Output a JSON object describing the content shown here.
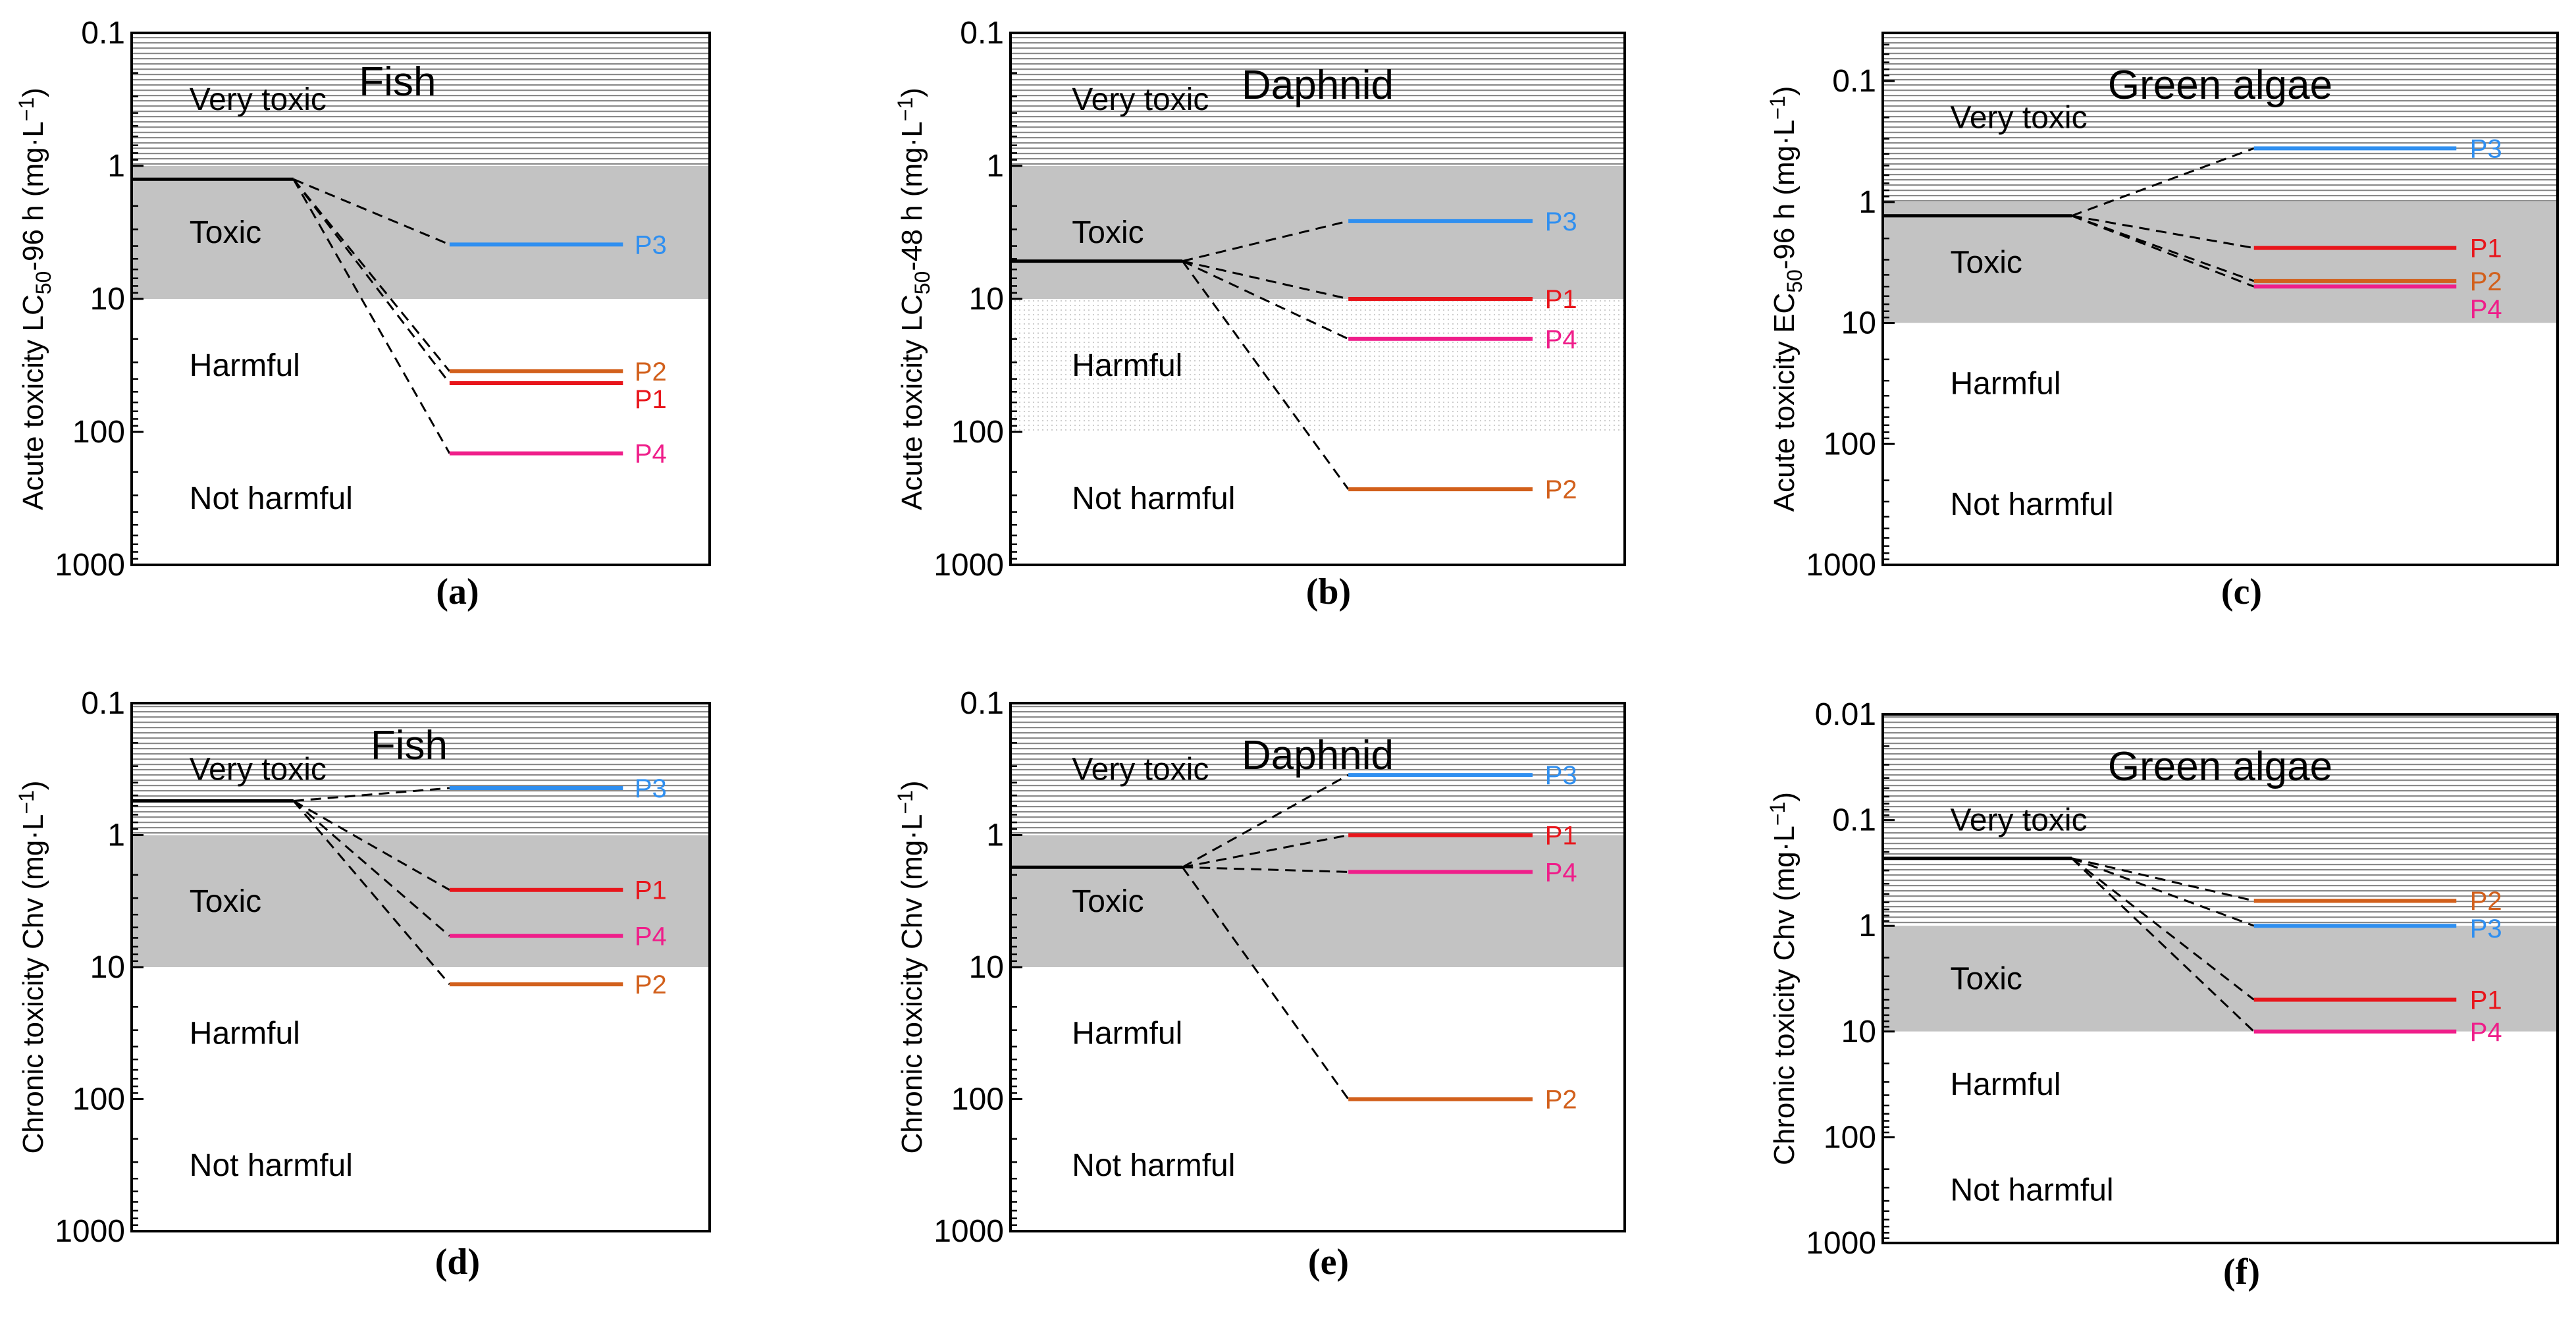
{
  "colors": {
    "P1": "#e8151b",
    "P2": "#d2601c",
    "P3": "#2f8ff0",
    "P4": "#ef1e8a",
    "baseline": "#000000",
    "toxic_fill": "#c3c3c3"
  },
  "chart_data": [
    {
      "type": "line",
      "caption": "(a)",
      "title": "Fish",
      "ylabel_pre": "Acute toxicity LC",
      "ylabel_sub": "50",
      "ylabel_post": "-96 h (mg·L",
      "ylabel_sup": "−1",
      "ylabel_end": ")",
      "y_scale": "log",
      "y_reversed": true,
      "ylim": [
        0.1,
        1000
      ],
      "yticks": [
        0.1,
        1,
        10,
        100,
        1000
      ],
      "ytick_labels": [
        "0.1",
        "1",
        "10",
        "100",
        "1000"
      ],
      "hatch_harmful_zone": false,
      "zones": [
        {
          "name": "very_toxic",
          "label": "Very toxic",
          "from": 0.1,
          "to": 1
        },
        {
          "name": "toxic",
          "label": "Toxic",
          "from": 1,
          "to": 10
        },
        {
          "name": "harmful",
          "label": "Harmful",
          "from": 10,
          "to": 100
        },
        {
          "name": "not_harmful",
          "label": "Not harmful",
          "from": 100,
          "to": 1000
        }
      ],
      "baseline_value": 1.26,
      "series": [
        {
          "name": "P3",
          "label": "P3",
          "value": 3.9
        },
        {
          "name": "P2",
          "label": "P2",
          "value": 35
        },
        {
          "name": "P1",
          "label": "P1",
          "value": 43
        },
        {
          "name": "P4",
          "label": "P4",
          "value": 145
        }
      ]
    },
    {
      "type": "line",
      "caption": "(b)",
      "title": "Daphnid",
      "ylabel_pre": "Acute toxicity LC",
      "ylabel_sub": "50",
      "ylabel_post": "-48 h (mg·L",
      "ylabel_sup": "−1",
      "ylabel_end": ")",
      "y_scale": "log",
      "y_reversed": true,
      "ylim": [
        0.1,
        1000
      ],
      "yticks": [
        0.1,
        1,
        10,
        100,
        1000
      ],
      "ytick_labels": [
        "0.1",
        "1",
        "10",
        "100",
        "1000"
      ],
      "hatch_harmful_zone": true,
      "zones": [
        {
          "name": "very_toxic",
          "label": "Very toxic",
          "from": 0.1,
          "to": 1
        },
        {
          "name": "toxic",
          "label": "Toxic",
          "from": 1,
          "to": 10
        },
        {
          "name": "harmful",
          "label": "Harmful",
          "from": 10,
          "to": 100
        },
        {
          "name": "not_harmful",
          "label": "Not harmful",
          "from": 100,
          "to": 1000
        }
      ],
      "baseline_value": 5.2,
      "series": [
        {
          "name": "P3",
          "label": "P3",
          "value": 2.6
        },
        {
          "name": "P1",
          "label": "P1",
          "value": 10
        },
        {
          "name": "P4",
          "label": "P4",
          "value": 20
        },
        {
          "name": "P2",
          "label": "P2",
          "value": 270
        }
      ]
    },
    {
      "type": "line",
      "caption": "(c)",
      "title": "Green algae",
      "ylabel_pre": "Acute toxicity EC",
      "ylabel_sub": "50",
      "ylabel_post": "-96 h (mg·L",
      "ylabel_sup": "−1",
      "ylabel_end": ")",
      "y_scale": "log",
      "y_reversed": true,
      "ylim": [
        0.04,
        1000
      ],
      "yticks": [
        0.1,
        1,
        10,
        100,
        1000
      ],
      "ytick_labels": [
        "0.1",
        "1",
        "10",
        "100",
        "1000"
      ],
      "hatch_harmful_zone": false,
      "zones": [
        {
          "name": "very_toxic",
          "label": "Very toxic",
          "from": 0.04,
          "to": 1
        },
        {
          "name": "toxic",
          "label": "Toxic",
          "from": 1,
          "to": 10
        },
        {
          "name": "harmful",
          "label": "Harmful",
          "from": 10,
          "to": 100
        },
        {
          "name": "not_harmful",
          "label": "Not harmful",
          "from": 100,
          "to": 1000
        }
      ],
      "baseline_value": 1.3,
      "series": [
        {
          "name": "P3",
          "label": "P3",
          "value": 0.36
        },
        {
          "name": "P1",
          "label": "P1",
          "value": 2.4
        },
        {
          "name": "P2",
          "label": "P2",
          "value": 4.5
        },
        {
          "name": "P4",
          "label": "P4",
          "value": 5.0
        }
      ]
    },
    {
      "type": "line",
      "caption": "(d)",
      "title": "Fish",
      "ylabel_pre": "Chronic toxicity Chv (mg·L",
      "ylabel_sub": "",
      "ylabel_post": "",
      "ylabel_sup": "−1",
      "ylabel_end": ")",
      "y_scale": "log",
      "y_reversed": true,
      "ylim": [
        0.1,
        1000
      ],
      "yticks": [
        0.1,
        1,
        10,
        100,
        1000
      ],
      "ytick_labels": [
        "0.1",
        "1",
        "10",
        "100",
        "1000"
      ],
      "hatch_harmful_zone": false,
      "zones": [
        {
          "name": "very_toxic",
          "label": "Very toxic",
          "from": 0.1,
          "to": 1
        },
        {
          "name": "toxic",
          "label": "Toxic",
          "from": 1,
          "to": 10
        },
        {
          "name": "harmful",
          "label": "Harmful",
          "from": 10,
          "to": 100
        },
        {
          "name": "not_harmful",
          "label": "Not harmful",
          "from": 100,
          "to": 1000
        }
      ],
      "baseline_value": 0.55,
      "series": [
        {
          "name": "P3",
          "label": "P3",
          "value": 0.44
        },
        {
          "name": "P1",
          "label": "P1",
          "value": 2.6
        },
        {
          "name": "P4",
          "label": "P4",
          "value": 5.8
        },
        {
          "name": "P2",
          "label": "P2",
          "value": 13.5
        }
      ]
    },
    {
      "type": "line",
      "caption": "(e)",
      "title": "Daphnid",
      "ylabel_pre": "Chronic toxicity Chv (mg·L",
      "ylabel_sub": "",
      "ylabel_post": "",
      "ylabel_sup": "−1",
      "ylabel_end": ")",
      "y_scale": "log",
      "y_reversed": true,
      "ylim": [
        0.1,
        1000
      ],
      "yticks": [
        0.1,
        1,
        10,
        100,
        1000
      ],
      "ytick_labels": [
        "0.1",
        "1",
        "10",
        "100",
        "1000"
      ],
      "hatch_harmful_zone": false,
      "zones": [
        {
          "name": "very_toxic",
          "label": "Very toxic",
          "from": 0.1,
          "to": 1
        },
        {
          "name": "toxic",
          "label": "Toxic",
          "from": 1,
          "to": 10
        },
        {
          "name": "harmful",
          "label": "Harmful",
          "from": 10,
          "to": 100
        },
        {
          "name": "not_harmful",
          "label": "Not harmful",
          "from": 100,
          "to": 1000
        }
      ],
      "baseline_value": 1.75,
      "series": [
        {
          "name": "P3",
          "label": "P3",
          "value": 0.35
        },
        {
          "name": "P1",
          "label": "P1",
          "value": 1.0
        },
        {
          "name": "P4",
          "label": "P4",
          "value": 1.9
        },
        {
          "name": "P2",
          "label": "P2",
          "value": 100
        }
      ]
    },
    {
      "type": "line",
      "caption": "(f)",
      "title": "Green algae",
      "ylabel_pre": "Chronic toxicity Chv (mg·L",
      "ylabel_sub": "",
      "ylabel_post": "",
      "ylabel_sup": "−1",
      "ylabel_end": ")",
      "y_scale": "log",
      "y_reversed": true,
      "ylim": [
        0.01,
        1000
      ],
      "yticks": [
        0.01,
        0.1,
        1,
        10,
        100,
        1000
      ],
      "ytick_labels": [
        "0.01",
        "0.1",
        "1",
        "10",
        "100",
        "1000"
      ],
      "hatch_harmful_zone": false,
      "zones": [
        {
          "name": "very_toxic",
          "label": "Very toxic",
          "from": 0.01,
          "to": 1
        },
        {
          "name": "toxic",
          "label": "Toxic",
          "from": 1,
          "to": 10
        },
        {
          "name": "harmful",
          "label": "Harmful",
          "from": 10,
          "to": 100
        },
        {
          "name": "not_harmful",
          "label": "Not harmful",
          "from": 100,
          "to": 1000
        }
      ],
      "baseline_value": 0.23,
      "series": [
        {
          "name": "P2",
          "label": "P2",
          "value": 0.58
        },
        {
          "name": "P3",
          "label": "P3",
          "value": 1.0
        },
        {
          "name": "P1",
          "label": "P1",
          "value": 5.0
        },
        {
          "name": "P4",
          "label": "P4",
          "value": 10
        }
      ]
    }
  ]
}
